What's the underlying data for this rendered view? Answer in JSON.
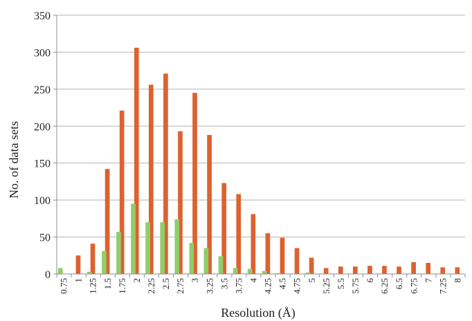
{
  "chart_data": {
    "type": "bar",
    "title": "",
    "xlabel": "Resolution (Å)",
    "ylabel": "No. of data sets",
    "ylim": [
      0,
      350
    ],
    "yticks": [
      0,
      50,
      100,
      150,
      200,
      250,
      300,
      350
    ],
    "grid": "horizontal",
    "legend": "none",
    "categories": [
      "0.75",
      "1",
      "1.25",
      "1.5",
      "1.75",
      "2",
      "2.25",
      "2.5",
      "2.75",
      "3",
      "3.25",
      "3.5",
      "3.75",
      "4",
      "4.25",
      "4.5",
      "4.75",
      "5",
      "5.25",
      "5.5",
      "5.75",
      "6",
      "6.25",
      "6.5",
      "6.75",
      "7",
      "7.25",
      "8"
    ],
    "series": [
      {
        "color": "#dc6230",
        "values": [
          0,
          25,
          41,
          142,
          221,
          306,
          256,
          271,
          193,
          245,
          188,
          123,
          108,
          81,
          55,
          49,
          35,
          22,
          8,
          10,
          10,
          11,
          11,
          10,
          16,
          15,
          9,
          9
        ]
      },
      {
        "color": "#92cd6b",
        "values": [
          8,
          0,
          3,
          31,
          57,
          95,
          70,
          70,
          74,
          42,
          35,
          24,
          8,
          7,
          4,
          1,
          0,
          2,
          0,
          0,
          0,
          0,
          0,
          0,
          0,
          0,
          0,
          0
        ]
      }
    ]
  }
}
